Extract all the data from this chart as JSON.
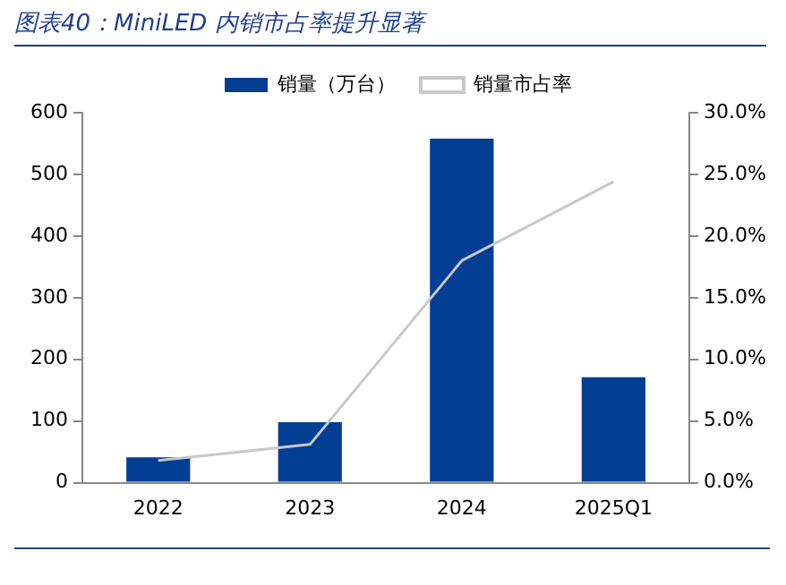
{
  "chart_data": {
    "type": "bar",
    "title": "图表40：MiniLED 内销市占率提升显著",
    "categories": [
      "2022",
      "2023",
      "2024",
      "2025Q1"
    ],
    "series": [
      {
        "name": "销量（万台）",
        "color": "#023e94",
        "values": [
          41,
          98,
          558,
          171
        ]
      },
      {
        "name": "销量市占率",
        "type": "line",
        "axis": "y2",
        "color": "#c8c8c8",
        "values": [
          1.8,
          3.1,
          18.0,
          24.4
        ]
      }
    ],
    "ylim": [
      0,
      600
    ],
    "yticks": [
      0,
      100,
      200,
      300,
      400,
      500,
      600
    ],
    "y2lim": [
      0,
      30
    ],
    "y2ticks": [
      {
        "value": 0,
        "label": "0.0%"
      },
      {
        "value": 5,
        "label": "5.0%"
      },
      {
        "value": 10,
        "label": "10.0%"
      },
      {
        "value": 15,
        "label": "15.0%"
      },
      {
        "value": 20,
        "label": "20.0%"
      },
      {
        "value": 25,
        "label": "25.0%"
      },
      {
        "value": 30,
        "label": "30.0%"
      }
    ],
    "grid": false,
    "legend": "top",
    "marker": "none"
  }
}
